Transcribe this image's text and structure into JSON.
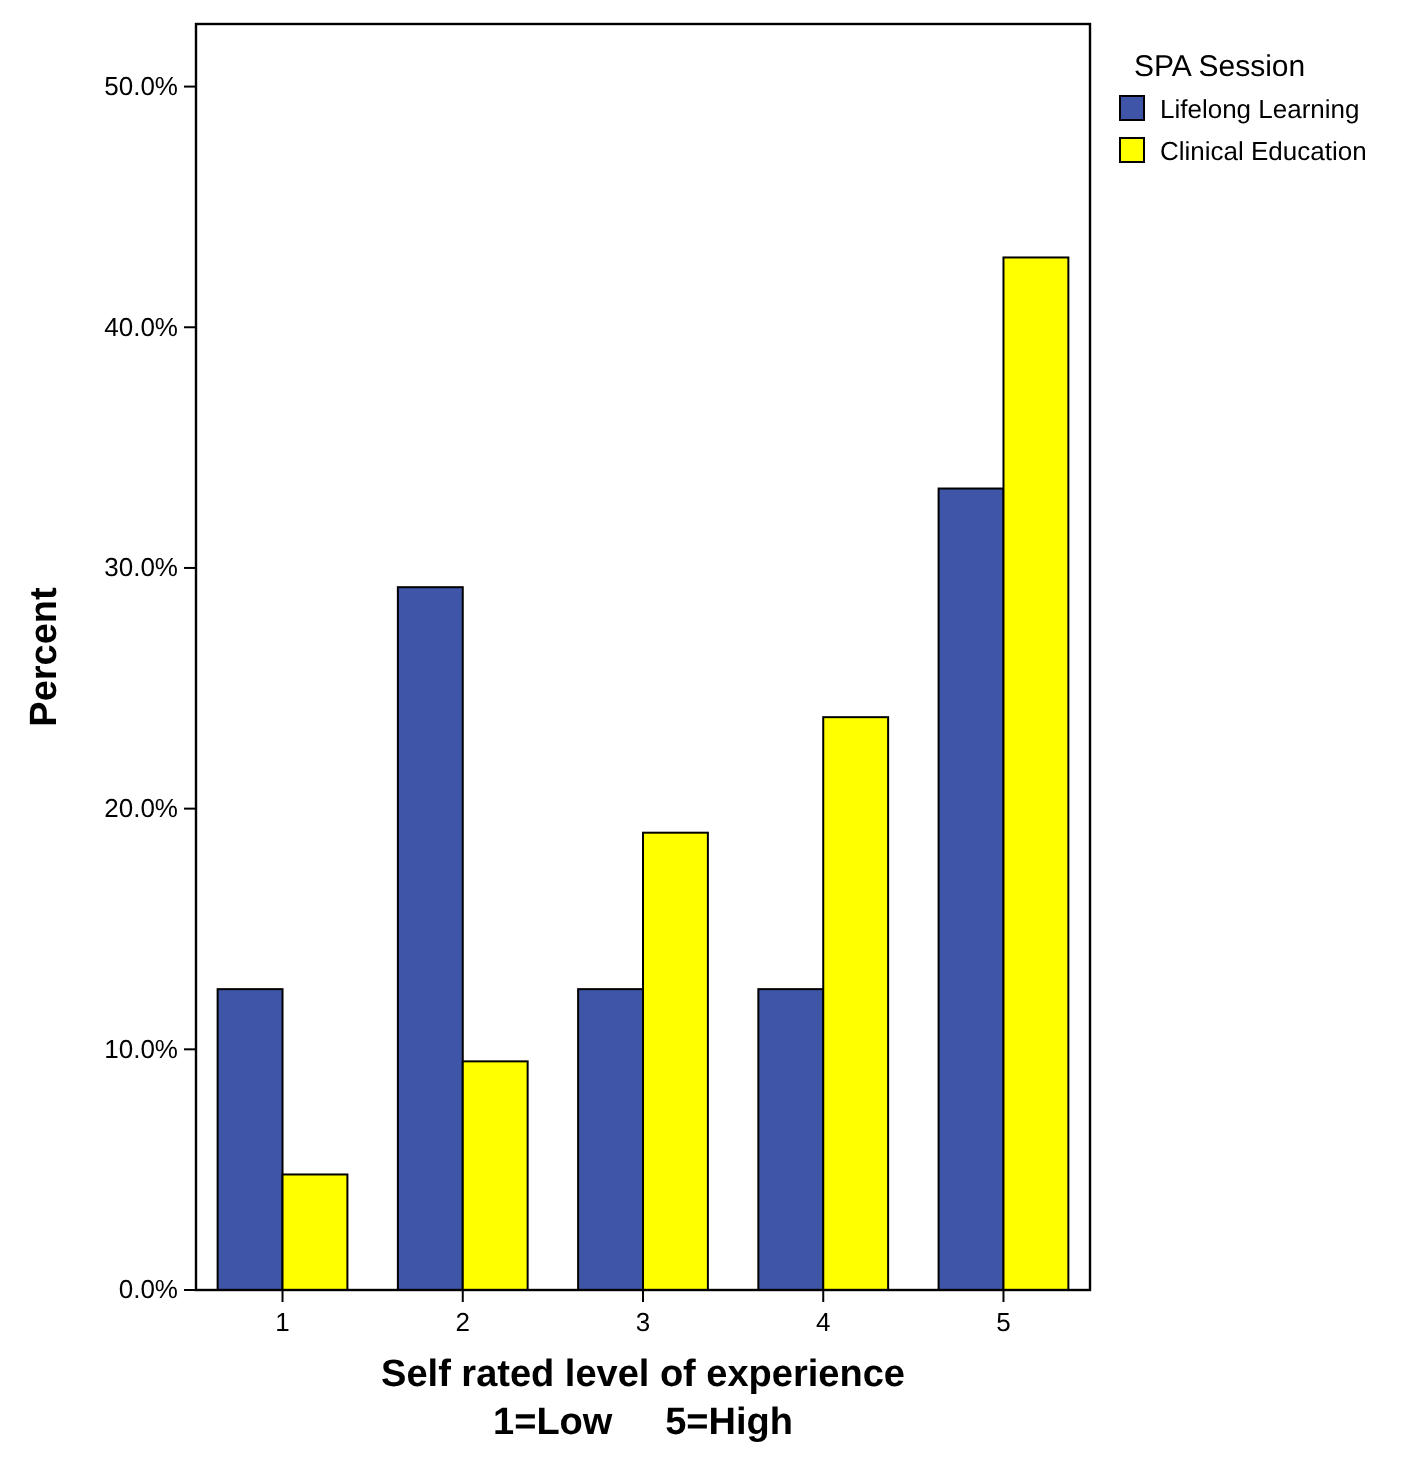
{
  "chart_data": {
    "type": "bar",
    "xlabel": "Self rated level of experience\n1=Low     5=High",
    "ylabel": "Percent",
    "legend_title": "SPA Session",
    "categories": [
      "1",
      "2",
      "3",
      "4",
      "5"
    ],
    "series": [
      {
        "name": "Lifelong Learning",
        "color": "#3f56a8",
        "values": [
          12.5,
          29.2,
          12.5,
          12.5,
          33.3
        ]
      },
      {
        "name": "Clinical Education",
        "color": "#ffff00",
        "values": [
          4.8,
          9.5,
          19.0,
          23.8,
          42.9
        ]
      }
    ],
    "ylim": [
      0,
      52.6
    ],
    "yticks": [
      {
        "value": 0,
        "label": "0.0%"
      },
      {
        "value": 10,
        "label": "10.0%"
      },
      {
        "value": 20,
        "label": "20.0%"
      },
      {
        "value": 30,
        "label": "30.0%"
      },
      {
        "value": 40,
        "label": "40.0%"
      },
      {
        "value": 50,
        "label": "50.0%"
      }
    ],
    "grid": false,
    "legend": "top right"
  }
}
